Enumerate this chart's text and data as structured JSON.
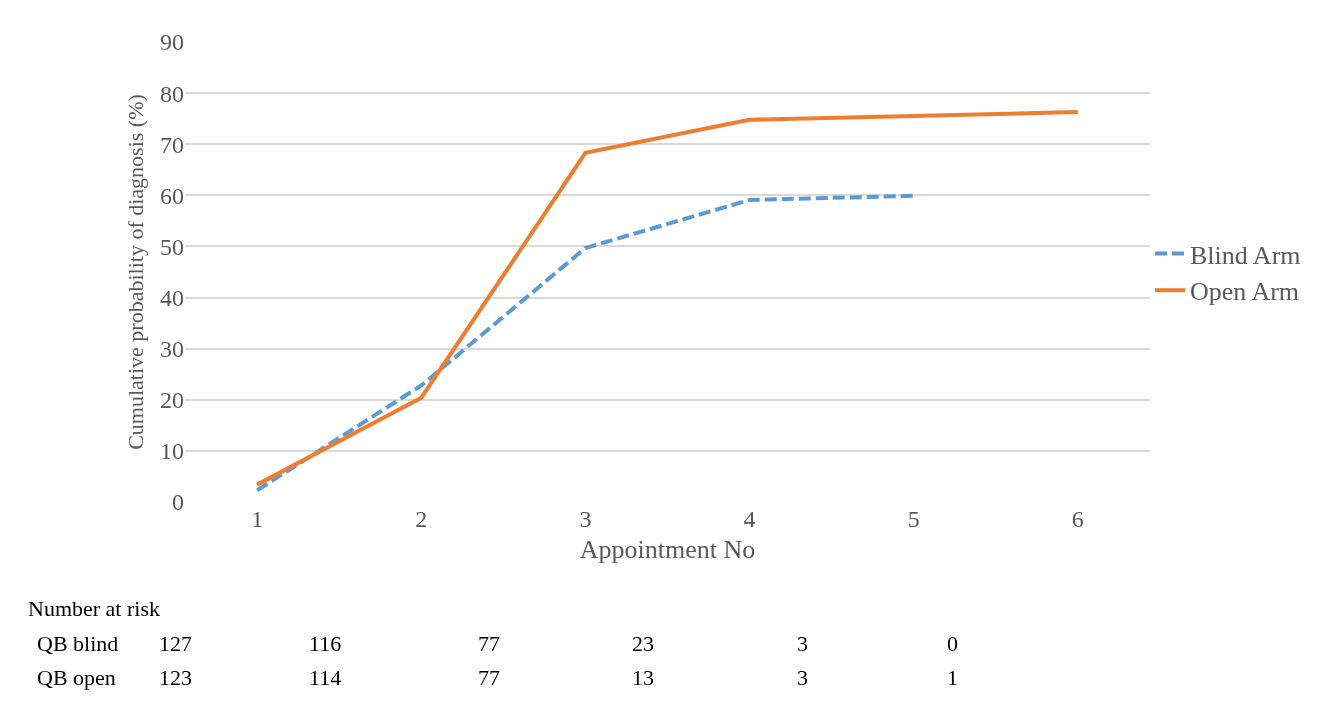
{
  "chart_data": {
    "type": "line",
    "xlabel": "Appointment No",
    "ylabel": "Cumulative probability of diagnosis (%)",
    "categories": [
      "1",
      "2",
      "3",
      "4",
      "5",
      "6"
    ],
    "series": [
      {
        "name": "Blind Arm",
        "color": "#5b9bd5",
        "line_style": "dashed",
        "values": [
          2.3,
          22.8,
          49.7,
          59.1,
          59.9,
          null
        ]
      },
      {
        "name": "Open Arm",
        "color": "#ed7d31",
        "line_style": "solid",
        "values": [
          3.4,
          20.4,
          68.3,
          74.8,
          75.5,
          76.3
        ]
      }
    ],
    "ylim": [
      0,
      90
    ],
    "yticks": [
      0,
      10,
      20,
      30,
      40,
      50,
      60,
      70,
      80,
      90
    ],
    "grid": "y",
    "legend": "right",
    "marker": "none",
    "annotations": [
      "Number at risk",
      "QB blind",
      "127",
      "116",
      "77",
      "23",
      "3",
      "0",
      "QB open",
      "123",
      "114",
      "77",
      "13",
      "3",
      "1"
    ]
  }
}
